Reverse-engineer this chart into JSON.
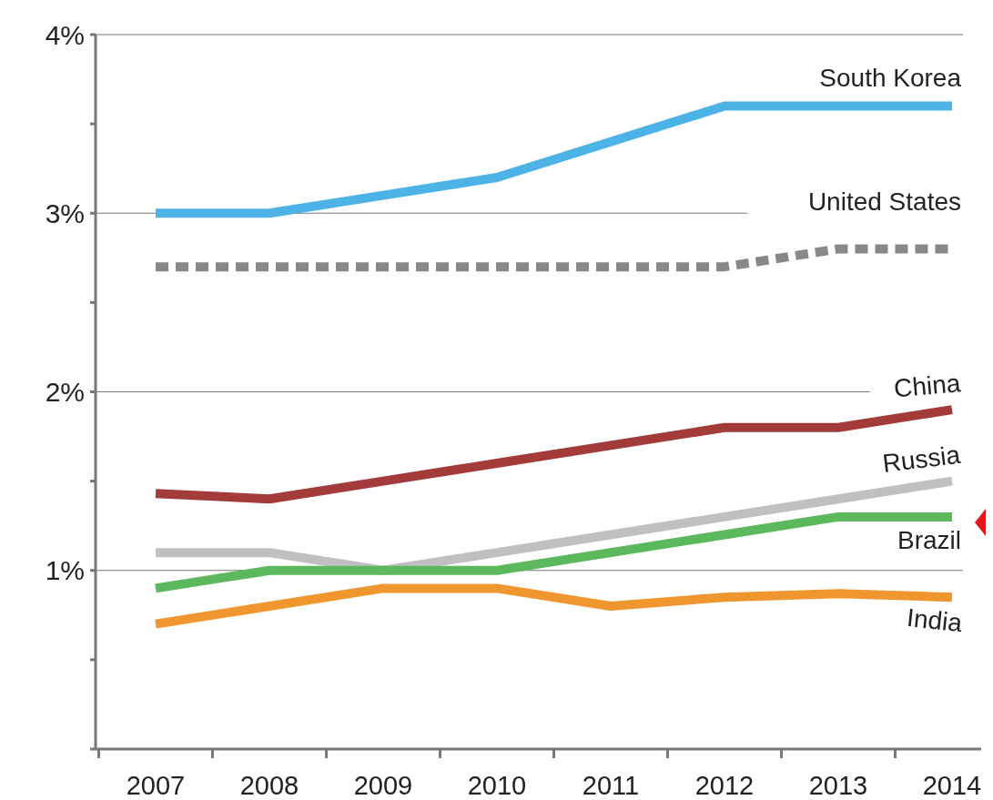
{
  "chart_data": {
    "type": "line",
    "categories": [
      "2007",
      "2008",
      "2009",
      "2010",
      "2011",
      "2012",
      "2013",
      "2014"
    ],
    "series": [
      {
        "name": "South Korea",
        "color": "#4db3e6",
        "values": [
          3.0,
          3.0,
          3.1,
          3.2,
          3.4,
          3.6,
          3.6,
          3.6
        ]
      },
      {
        "name": "United States",
        "color": "#888888",
        "line_style": "dashed",
        "values": [
          2.7,
          2.7,
          2.7,
          2.7,
          2.7,
          2.7,
          2.8,
          2.8
        ]
      },
      {
        "name": "China",
        "color": "#a33b3b",
        "values": [
          1.43,
          1.4,
          1.5,
          1.6,
          1.7,
          1.8,
          1.8,
          1.9
        ]
      },
      {
        "name": "Russia",
        "color": "#c0c0c0",
        "values": [
          1.1,
          1.1,
          1.0,
          1.1,
          1.2,
          1.3,
          1.4,
          1.5
        ]
      },
      {
        "name": "Brazil",
        "color": "#5cb85c",
        "values": [
          0.9,
          1.0,
          1.0,
          1.0,
          1.1,
          1.2,
          1.3,
          1.3
        ]
      },
      {
        "name": "India",
        "color": "#f0962e",
        "values": [
          0.7,
          0.8,
          0.9,
          0.9,
          0.8,
          0.85,
          0.87,
          0.85
        ]
      }
    ],
    "ylim": [
      0,
      4
    ],
    "yticks": [
      {
        "value": 0,
        "label": null
      },
      {
        "value": 0.5,
        "label": null
      },
      {
        "value": 1,
        "label": "1%"
      },
      {
        "value": 1.5,
        "label": null
      },
      {
        "value": 2,
        "label": "2%"
      },
      {
        "value": 2.5,
        "label": null
      },
      {
        "value": 3,
        "label": "3%"
      },
      {
        "value": 3.5,
        "label": null
      },
      {
        "value": 4,
        "label": "4%"
      }
    ],
    "grid": "y",
    "marker": "none",
    "line_style": "solid"
  }
}
